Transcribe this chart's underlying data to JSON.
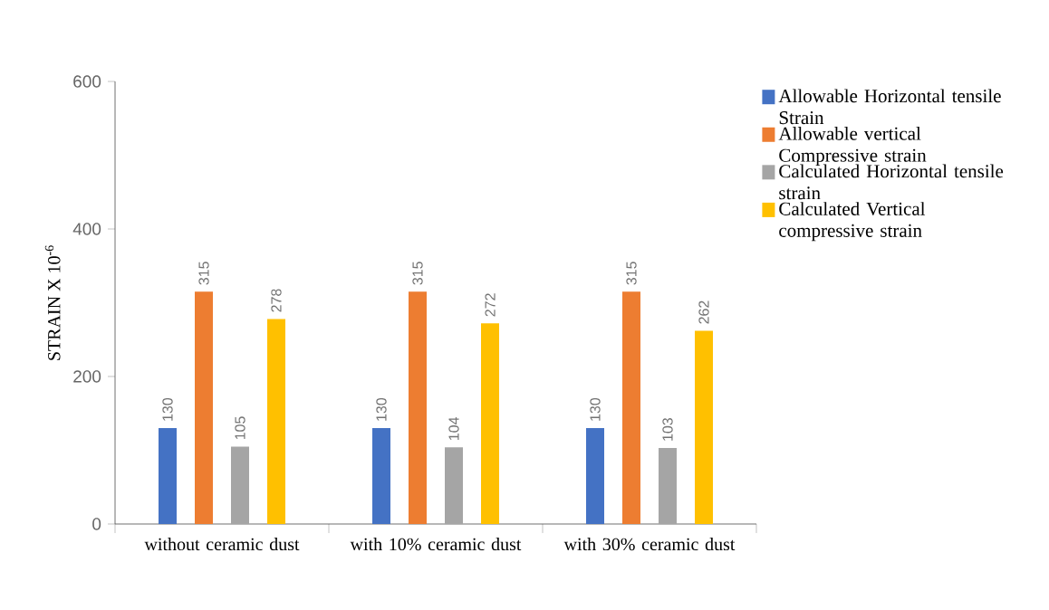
{
  "chart_data": {
    "type": "bar",
    "ylabel": "STRAIN X 10$^{-6}$",
    "categories": [
      "without ceramic dust",
      "with 10% ceramic dust",
      "with 30% ceramic dust"
    ],
    "series": [
      {
        "name": "Allowable Horizontal tensile Strain",
        "color": "#4472c4",
        "values": [
          130,
          130,
          130
        ]
      },
      {
        "name": "Allowable vertical Compressive strain",
        "color": "#ed7d31",
        "values": [
          315,
          315,
          315
        ]
      },
      {
        "name": "Calculated Horizontal tensile strain",
        "color": "#a5a5a5",
        "values": [
          105,
          104,
          103
        ]
      },
      {
        "name": "Calculated Vertical compressive strain",
        "color": "#ffc000",
        "values": [
          278,
          272,
          262
        ]
      }
    ],
    "ylim": [
      0,
      600
    ],
    "yticks": [
      0,
      200,
      400,
      600
    ],
    "data_labels": true,
    "legend": "right",
    "grid": false
  }
}
